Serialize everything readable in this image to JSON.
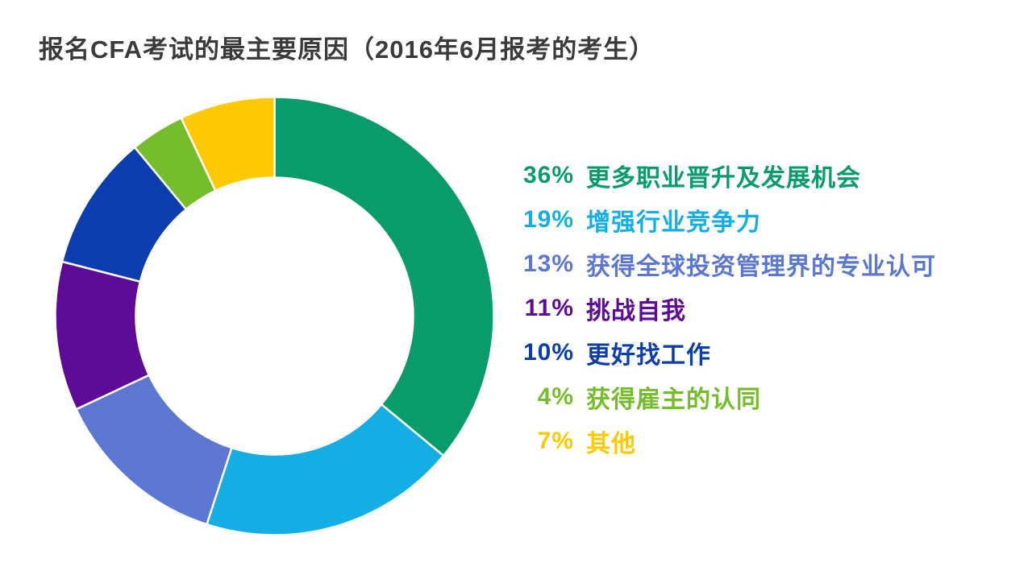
{
  "page": {
    "title": "报名CFA考试的最主要原因（2016年6月报考的考生）",
    "title_color": "#3a3a3a",
    "background_color": "#ffffff"
  },
  "chart_data": {
    "type": "pie",
    "subtype": "donut",
    "title": "报名CFA考试的最主要原因（2016年6月报考的考生）",
    "start_angle_deg": 0,
    "direction": "clockwise",
    "inner_radius_ratio": 0.63,
    "slice_separator_color": "#ffffff",
    "legend_position": "right",
    "series": [
      {
        "label": "更多职业晋升及发展机会",
        "value_pct": 36,
        "percent_label": "36%",
        "color": "#0a9b6d"
      },
      {
        "label": "增强行业竞争力",
        "value_pct": 19,
        "percent_label": "19%",
        "color": "#14aee4"
      },
      {
        "label": "获得全球投资管理界的专业认可",
        "value_pct": 13,
        "percent_label": "13%",
        "color": "#5c77d2"
      },
      {
        "label": "挑战自我",
        "value_pct": 11,
        "percent_label": "11%",
        "color": "#5d0b97"
      },
      {
        "label": "更好找工作",
        "value_pct": 10,
        "percent_label": "10%",
        "color": "#0c3dae"
      },
      {
        "label": "获得雇主的认同",
        "value_pct": 4,
        "percent_label": "4%",
        "color": "#76bd2c"
      },
      {
        "label": "其他",
        "value_pct": 7,
        "percent_label": "7%",
        "color": "#fdc905"
      }
    ]
  }
}
